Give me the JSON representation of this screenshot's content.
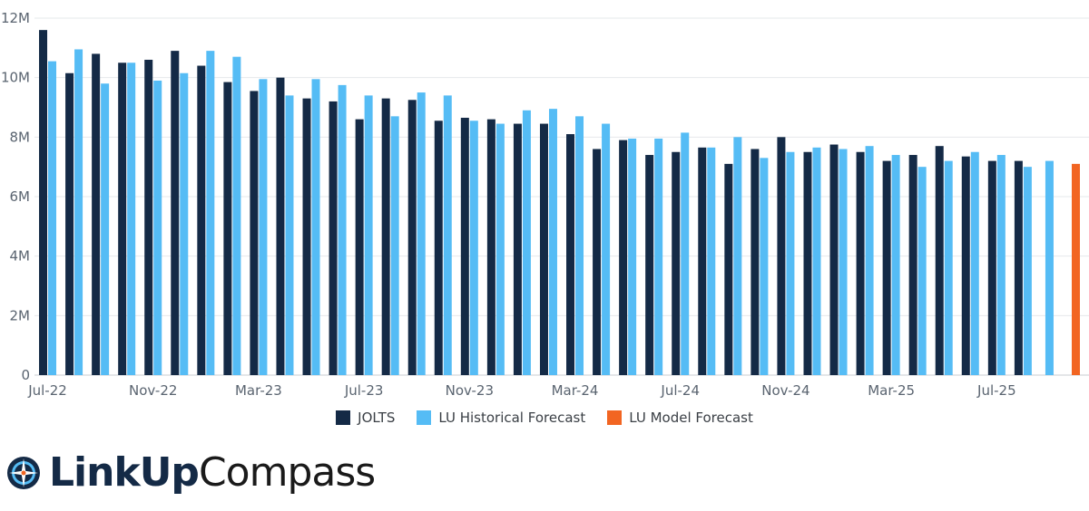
{
  "chart_data": {
    "type": "bar",
    "categories": [
      "Jul-22",
      "Aug-22",
      "Sep-22",
      "Oct-22",
      "Nov-22",
      "Dec-22",
      "Jan-23",
      "Feb-23",
      "Mar-23",
      "Apr-23",
      "May-23",
      "Jun-23",
      "Jul-23",
      "Aug-23",
      "Sep-23",
      "Oct-23",
      "Nov-23",
      "Dec-23",
      "Jan-24",
      "Feb-24",
      "Mar-24",
      "Apr-24",
      "May-24",
      "Jun-24",
      "Jul-24",
      "Aug-24",
      "Sep-24",
      "Oct-24",
      "Nov-24",
      "Dec-24",
      "Jan-25",
      "Feb-25",
      "Mar-25",
      "Apr-25",
      "May-25",
      "Jun-25",
      "Jul-25",
      "Aug-25",
      "Sep-25",
      "Oct-25"
    ],
    "tick_labels": [
      "Jul-22",
      "Nov-22",
      "Mar-23",
      "Jul-23",
      "Nov-23",
      "Mar-24",
      "Jul-24",
      "Nov-24",
      "Mar-25",
      "Jul-25"
    ],
    "y_tick_labels": [
      "0",
      "2M",
      "4M",
      "6M",
      "8M",
      "10M",
      "12M"
    ],
    "y_ticks": [
      0,
      2,
      4,
      6,
      8,
      10,
      12
    ],
    "ylim": [
      0,
      12
    ],
    "y_unit": "millions",
    "grid": true,
    "legend_position": "bottom-center",
    "series": [
      {
        "name": "JOLTS",
        "color": "#142a46",
        "values": [
          11.6,
          10.15,
          10.8,
          10.5,
          10.6,
          10.9,
          10.4,
          9.85,
          9.55,
          10.0,
          9.3,
          9.2,
          8.6,
          9.3,
          9.25,
          8.55,
          8.65,
          8.6,
          8.45,
          8.45,
          8.1,
          7.6,
          7.9,
          7.4,
          7.5,
          7.65,
          7.1,
          7.6,
          8.0,
          7.5,
          7.75,
          7.5,
          7.2,
          7.4,
          7.7,
          7.35,
          7.2,
          7.2,
          null,
          null
        ]
      },
      {
        "name": "LU Historical Forecast",
        "color": "#55bcf5",
        "values": [
          10.55,
          10.95,
          9.8,
          10.5,
          9.9,
          10.15,
          10.9,
          10.7,
          9.95,
          9.4,
          9.95,
          9.75,
          9.4,
          8.7,
          9.5,
          9.4,
          8.55,
          8.45,
          8.9,
          8.95,
          8.7,
          8.45,
          7.95,
          7.95,
          8.15,
          7.65,
          8.0,
          7.3,
          7.5,
          7.65,
          7.6,
          7.7,
          7.4,
          7.0,
          7.2,
          7.5,
          7.4,
          7.0,
          7.2,
          null
        ]
      },
      {
        "name": "LU Model Forecast",
        "color": "#f26522",
        "values": [
          null,
          null,
          null,
          null,
          null,
          null,
          null,
          null,
          null,
          null,
          null,
          null,
          null,
          null,
          null,
          null,
          null,
          null,
          null,
          null,
          null,
          null,
          null,
          null,
          null,
          null,
          null,
          null,
          null,
          null,
          null,
          null,
          null,
          null,
          null,
          null,
          null,
          null,
          null,
          7.1
        ]
      }
    ],
    "title": "",
    "xlabel": "",
    "ylabel": ""
  },
  "legend": {
    "items": [
      {
        "label": "JOLTS",
        "color": "#142a46"
      },
      {
        "label": "LU Historical Forecast",
        "color": "#55bcf5"
      },
      {
        "label": "LU Model Forecast",
        "color": "#f26522"
      }
    ]
  },
  "brand": {
    "name_bold": "LinkUp",
    "name_light": "Compass",
    "mark_icon": "compass-icon"
  }
}
